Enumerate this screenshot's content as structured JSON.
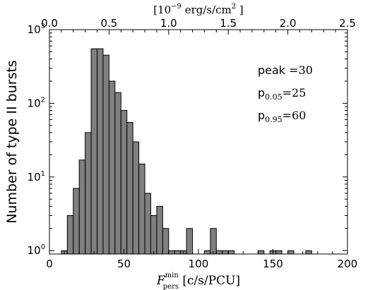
{
  "chart_data": {
    "type": "bar",
    "yscale": "log",
    "xlim": [
      0,
      200
    ],
    "ylim": [
      0.9,
      1000
    ],
    "bin_width": 4,
    "bars": [
      {
        "x": 8,
        "value": 1
      },
      {
        "x": 12,
        "value": 3
      },
      {
        "x": 16,
        "value": 7
      },
      {
        "x": 20,
        "value": 17
      },
      {
        "x": 24,
        "value": 40
      },
      {
        "x": 28,
        "value": 550
      },
      {
        "x": 32,
        "value": 550
      },
      {
        "x": 36,
        "value": 450
      },
      {
        "x": 40,
        "value": 200
      },
      {
        "x": 44,
        "value": 140
      },
      {
        "x": 48,
        "value": 80
      },
      {
        "x": 52,
        "value": 55
      },
      {
        "x": 56,
        "value": 30
      },
      {
        "x": 60,
        "value": 15
      },
      {
        "x": 64,
        "value": 6
      },
      {
        "x": 68,
        "value": 3
      },
      {
        "x": 72,
        "value": 4
      },
      {
        "x": 76,
        "value": 2
      },
      {
        "x": 80,
        "value": 1
      },
      {
        "x": 84,
        "value": 1
      },
      {
        "x": 88,
        "value": 1
      },
      {
        "x": 92,
        "value": 2
      },
      {
        "x": 104,
        "value": 1
      },
      {
        "x": 108,
        "value": 2
      },
      {
        "x": 112,
        "value": 1
      },
      {
        "x": 116,
        "value": 1
      },
      {
        "x": 120,
        "value": 1
      },
      {
        "x": 140,
        "value": 1
      },
      {
        "x": 148,
        "value": 1
      },
      {
        "x": 152,
        "value": 1
      },
      {
        "x": 160,
        "value": 1
      },
      {
        "x": 172,
        "value": 1
      }
    ],
    "bar_color": "#7f7f7f",
    "x_ticks": [
      "0",
      "50",
      "100",
      "150",
      "200"
    ],
    "x_tick_values": [
      0,
      50,
      100,
      150,
      200
    ],
    "y_ticks": [
      {
        "value": 1,
        "base": "10",
        "exp": "0"
      },
      {
        "value": 10,
        "base": "10",
        "exp": "1"
      },
      {
        "value": 100,
        "base": "10",
        "exp": "2"
      },
      {
        "value": 1000,
        "base": "10",
        "exp": "3"
      }
    ],
    "top_axis": {
      "ticks": [
        "0.0",
        "0.5",
        "1.0",
        "1.5",
        "2.0",
        "2.5"
      ],
      "tick_values": [
        0.0,
        0.5,
        1.0,
        1.5,
        2.0,
        2.5
      ],
      "range": [
        0,
        2.5
      ],
      "label_bracket_open": "[",
      "label_pow_base": "10",
      "label_pow_exp": "−9",
      "label_units": " erg/s/cm",
      "label_units_exp": "2",
      "label_bracket_close": " ]"
    },
    "xlabel_main": "F",
    "xlabel_sup": "min",
    "xlabel_sub": "pers",
    "xlabel_units": " [c/s/PCU]",
    "ylabel": "Number of type II bursts",
    "annotations": [
      {
        "label": "peak",
        "relation": " =30"
      },
      {
        "label": "p",
        "sub": "0.05",
        "relation": "=25"
      },
      {
        "label": "p",
        "sub": "0.95",
        "relation": "=60"
      }
    ]
  }
}
